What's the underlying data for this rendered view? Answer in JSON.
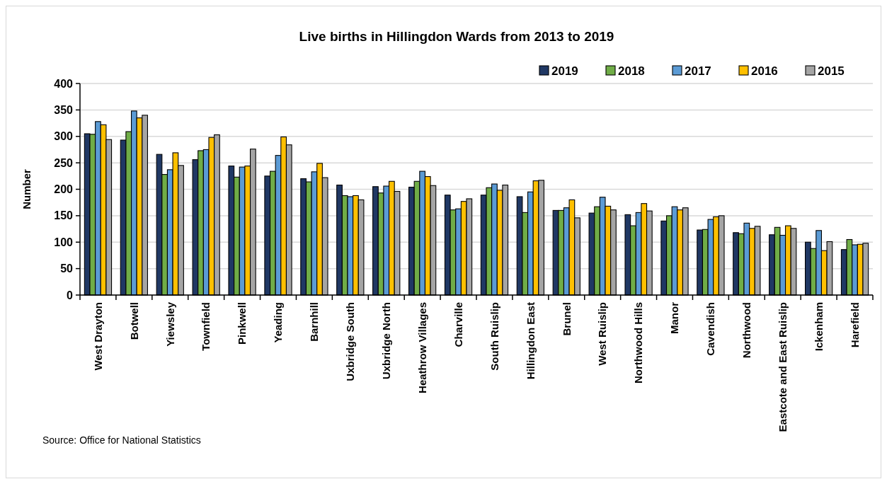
{
  "chart_data": {
    "type": "bar",
    "title": "Live births in Hillingdon Wards from 2013 to 2019",
    "ylabel": "Number",
    "categories": [
      "West Drayton",
      "Botwell",
      "Yiewsley",
      "Townfield",
      "Pinkwell",
      "Yeading",
      "Barnhill",
      "Uxbridge South",
      "Uxbridge North",
      "Heathrow Villages",
      "Charville",
      "South Ruislip",
      "Hillingdon East",
      "Brunel",
      "West Ruislip",
      "Northwood Hills",
      "Manor",
      "Cavendish",
      "Northwood",
      "Eastcote and East Ruislip",
      "Ickenham",
      "Harefield"
    ],
    "series": [
      {
        "name": "2019",
        "color": "#203864",
        "values": [
          305,
          293,
          266,
          256,
          244,
          225,
          220,
          208,
          205,
          204,
          189,
          189,
          186,
          160,
          155,
          152,
          140,
          123,
          118,
          114,
          100,
          86
        ]
      },
      {
        "name": "2018",
        "color": "#70ad47",
        "values": [
          304,
          309,
          228,
          273,
          223,
          234,
          214,
          188,
          193,
          215,
          161,
          203,
          156,
          160,
          167,
          131,
          150,
          124,
          116,
          128,
          88,
          105
        ]
      },
      {
        "name": "2017",
        "color": "#5b9bd5",
        "values": [
          328,
          348,
          237,
          275,
          242,
          264,
          233,
          186,
          206,
          234,
          163,
          210,
          195,
          165,
          185,
          156,
          167,
          143,
          136,
          113,
          122,
          95
        ]
      },
      {
        "name": "2016",
        "color": "#ffc000",
        "values": [
          322,
          335,
          269,
          298,
          244,
          299,
          249,
          188,
          215,
          224,
          177,
          198,
          216,
          180,
          168,
          173,
          161,
          148,
          126,
          131,
          84,
          96
        ]
      },
      {
        "name": "2015",
        "color": "#a5a5a5",
        "values": [
          294,
          340,
          245,
          303,
          276,
          284,
          222,
          180,
          196,
          207,
          182,
          208,
          217,
          146,
          161,
          159,
          165,
          150,
          130,
          126,
          101,
          98
        ]
      }
    ],
    "ylim": [
      0,
      400
    ],
    "yticks": [
      0,
      50,
      100,
      150,
      200,
      250,
      300,
      350,
      400
    ],
    "grid": "y",
    "legend": "top right",
    "annotations": [
      "Source: Office for National Statistics"
    ]
  }
}
